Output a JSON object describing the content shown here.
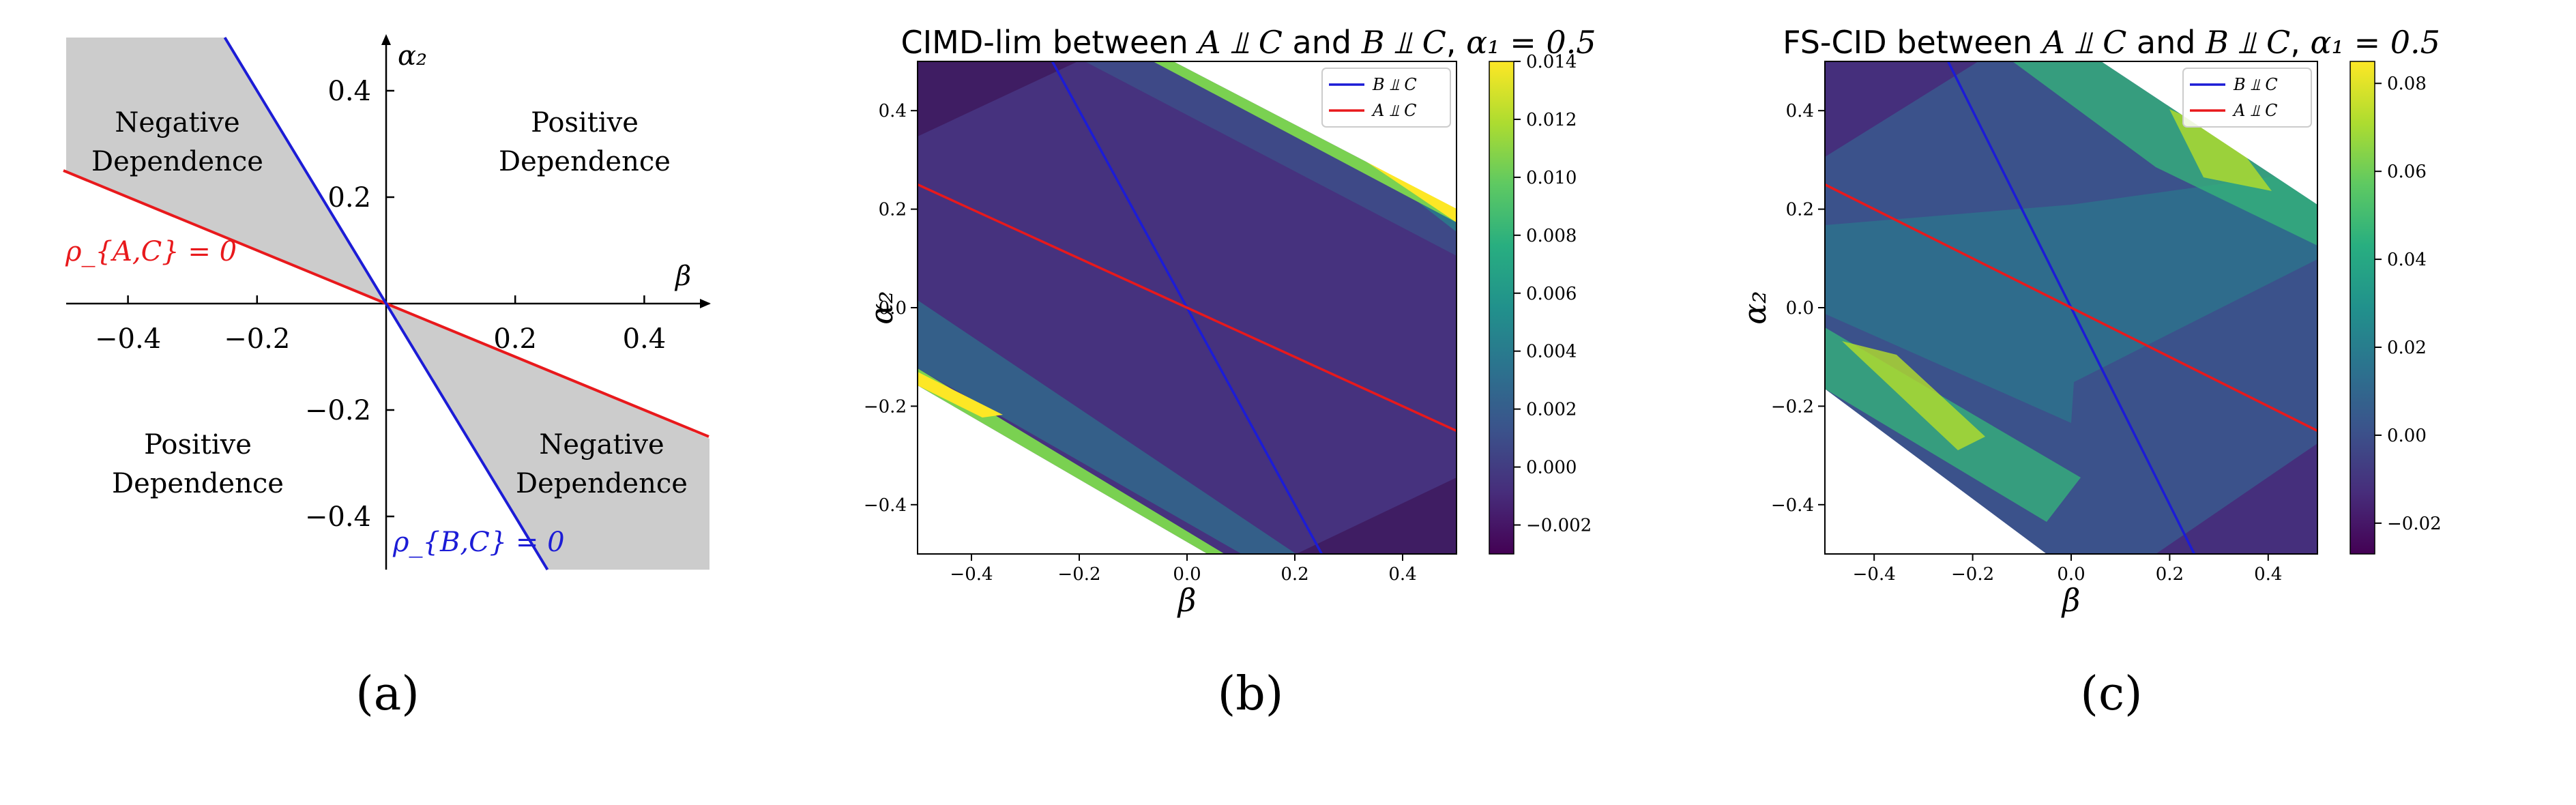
{
  "panels": [
    {
      "caption": "(a)",
      "region_labels": {
        "negative_top_left": [
          "Negative",
          "Dependence"
        ],
        "positive_top_right": [
          "Positive",
          "Dependence"
        ],
        "positive_bottom_left": [
          "Positive",
          "Dependence"
        ],
        "negative_bottom_right": [
          "Negative",
          "Dependence"
        ]
      },
      "xlabel": "β",
      "ylabel": "α₂",
      "line_red_label": "ρ_{A,C} = 0",
      "line_blue_label": "ρ_{B,C} = 0"
    },
    {
      "caption": "(b)",
      "title": "CIMD-lim between A ⫫ C and B ⫫ C, α₁ = 0.5",
      "title_parts": {
        "prefix": "CIMD-lim between ",
        "a": "A ⫫ C",
        "mid": " and ",
        "b": "B ⫫ C",
        "sep": ", ",
        "alpha": "α₁ = 0.5"
      },
      "legend": [
        "B ⫫ C",
        "A ⫫ C"
      ],
      "colorbar_ticks": [
        "0.014",
        "0.012",
        "0.010",
        "0.008",
        "0.006",
        "0.004",
        "0.002",
        "0.000",
        "−0.002"
      ]
    },
    {
      "caption": "(c)",
      "title": "FS-CID between A ⫫ C and B ⫫ C, α₁ = 0.5",
      "title_parts": {
        "prefix": "FS-CID between ",
        "a": "A ⫫ C",
        "mid": " and ",
        "b": "B ⫫ C",
        "sep": ", ",
        "alpha": "α₁ = 0.5"
      },
      "legend": [
        "B ⫫ C",
        "A ⫫ C"
      ],
      "colorbar_ticks": [
        "0.08",
        "0.06",
        "0.04",
        "0.02",
        "0.00",
        "−0.02"
      ]
    }
  ],
  "chart_data": [
    {
      "type": "line",
      "panel": "a",
      "xlabel": "β",
      "ylabel": "α₂",
      "xlim": [
        -0.5,
        0.5
      ],
      "ylim": [
        -0.5,
        0.5
      ],
      "xticks": [
        "−0.4",
        "−0.2",
        "0.2",
        "0.4"
      ],
      "yticks": [
        "0.4",
        "0.2",
        "−0.2",
        "−0.4"
      ],
      "series": [
        {
          "name": "ρ_{A,C} = 0",
          "color": "#e8191c",
          "x": [
            -0.5,
            0.5
          ],
          "y": [
            0.25,
            -0.25
          ]
        },
        {
          "name": "ρ_{B,C} = 0",
          "color": "#1c1cd6",
          "x": [
            -0.25,
            0.25
          ],
          "y": [
            0.5,
            -0.5
          ]
        }
      ],
      "shaded_color": "#cccccc"
    },
    {
      "type": "heatmap",
      "panel": "b",
      "title": "CIMD-lim between A ⫫ C and B ⫫ C, α₁ = 0.5",
      "xlabel": "β",
      "ylabel": "α₂",
      "xlim": [
        -0.5,
        0.5
      ],
      "ylim": [
        -0.5,
        0.5
      ],
      "xticks": [
        "−0.4",
        "−0.2",
        "0.0",
        "0.2",
        "0.4"
      ],
      "yticks": [
        "0.4",
        "0.2",
        "0.0",
        "−0.2",
        "−0.4"
      ],
      "colorbar_range": [
        -0.003,
        0.014
      ],
      "series": [
        {
          "name": "B ⫫ C",
          "color": "#1c1cd6",
          "x": [
            -0.25,
            0.25
          ],
          "y": [
            0.5,
            -0.5
          ]
        },
        {
          "name": "A ⫫ C",
          "color": "#e8191c",
          "x": [
            -0.5,
            0.5
          ],
          "y": [
            0.25,
            -0.25
          ]
        }
      ],
      "legend_position": "upper right"
    },
    {
      "type": "heatmap",
      "panel": "c",
      "title": "FS-CID between A ⫫ C and B ⫫ C, α₁ = 0.5",
      "xlabel": "β",
      "ylabel": "α₂",
      "xlim": [
        -0.5,
        0.5
      ],
      "ylim": [
        -0.5,
        0.5
      ],
      "xticks": [
        "−0.4",
        "−0.2",
        "0.0",
        "0.2",
        "0.4"
      ],
      "yticks": [
        "0.4",
        "0.2",
        "0.0",
        "−0.2",
        "−0.4"
      ],
      "colorbar_range": [
        -0.027,
        0.085
      ],
      "series": [
        {
          "name": "B ⫫ C",
          "color": "#1c1cd6",
          "x": [
            -0.25,
            0.25
          ],
          "y": [
            0.5,
            -0.5
          ]
        },
        {
          "name": "A ⫫ C",
          "color": "#e8191c",
          "x": [
            -0.5,
            0.5
          ],
          "y": [
            0.25,
            -0.25
          ]
        }
      ],
      "legend_position": "upper right"
    }
  ]
}
